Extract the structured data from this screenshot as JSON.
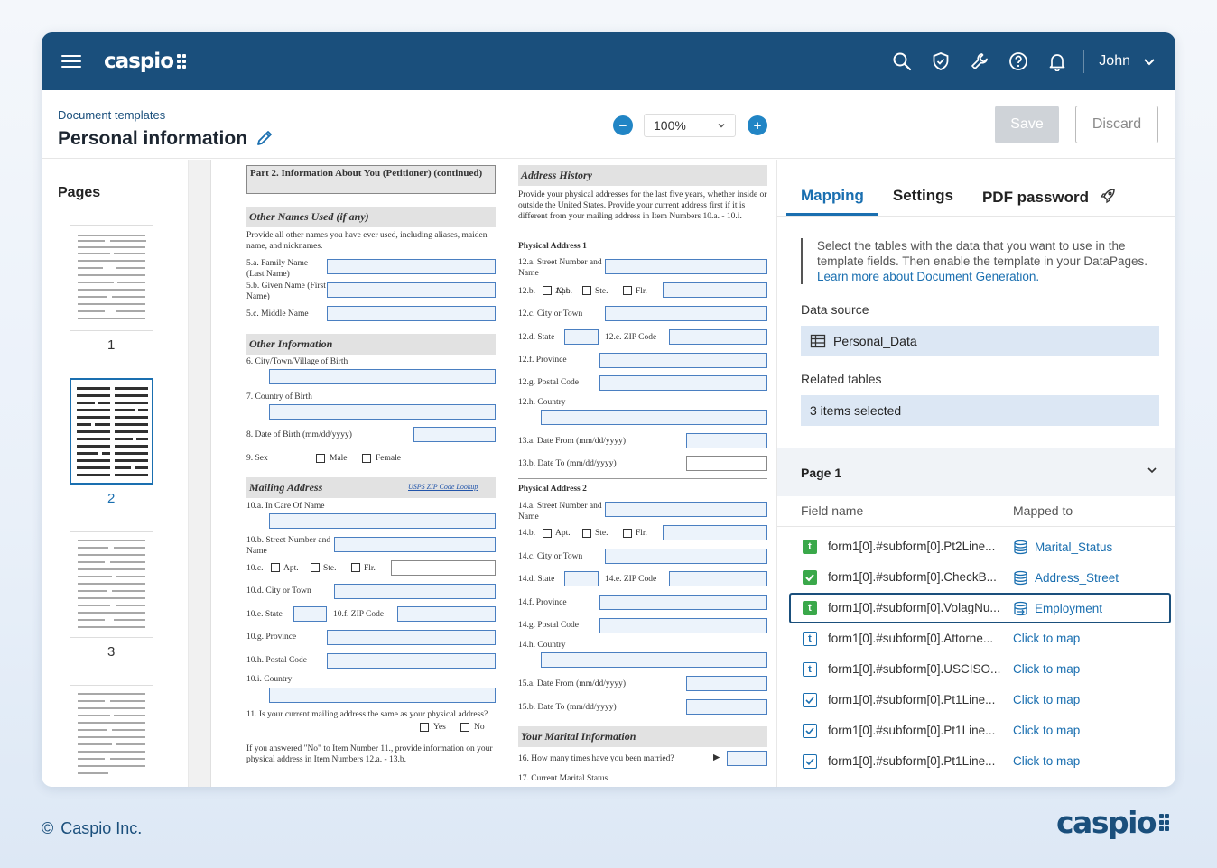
{
  "app": {
    "brand": "caspio",
    "user": "John",
    "accent": "#1a4f7c",
    "link_color": "#1a6fb0"
  },
  "header": {
    "breadcrumb": "Document templates",
    "title": "Personal information",
    "zoom": "100%",
    "save_label": "Save",
    "discard_label": "Discard"
  },
  "pages": {
    "heading": "Pages",
    "items": [
      {
        "num": "1"
      },
      {
        "num": "2",
        "selected": true
      },
      {
        "num": "3"
      }
    ]
  },
  "document": {
    "left": {
      "part_head": "Part 2.  Information About You (Petitioner) (continued)",
      "other_names_head": "Other Names Used (if any)",
      "other_names_desc": "Provide all other names you have ever used, including aliases, maiden name, and nicknames.",
      "f5a": "5.a.  Family Name (Last Name)",
      "f5b": "5.b.  Given Name (First Name)",
      "f5c": "5.c.  Middle Name",
      "other_info_head": "Other Information",
      "f6": "6.    City/Town/Village of Birth",
      "f7": "7.    Country of Birth",
      "f8": "8.    Date of Birth (mm/dd/yyyy)",
      "f9": "9.    Sex",
      "male": "Male",
      "female": "Female",
      "mailing_head": "Mailing Address",
      "usps": "USPS ZIP Code Lookup",
      "f10a": "10.a.  In Care Of Name",
      "f10b": "10.b.  Street Number and Name",
      "f10c": "10.c.",
      "apt": "Apt.",
      "ste": "Ste.",
      "flr": "Flr.",
      "f10d": "10.d.  City or Town",
      "f10e": "10.e.  State",
      "f10f": "10.f.  ZIP Code",
      "f10g": "10.g.  Province",
      "f10h": "10.h.  Postal Code",
      "f10i": "10.i.  Country",
      "f11": "11.    Is your current mailing address the same as your physical address?",
      "yes": "Yes",
      "no": "No",
      "f11note": "If you answered \"No\" to Item Number 11., provide information on your physical address in Item Numbers 12.a. - 13.b."
    },
    "right": {
      "addr_head": "Address History",
      "addr_desc": "Provide your physical addresses for the last five years, whether inside or outside the United States.  Provide your current address first if it is different from your mailing address in Item Numbers 10.a. - 10.i.",
      "phys1": "Physical Address 1",
      "f12a": "12.a.  Street Number and Name",
      "f12b": "12.b.",
      "f12c": "12.c.  City or Town",
      "f12d": "12.d.  State",
      "f12e": "12.e.  ZIP Code",
      "f12f": "12.f.  Province",
      "f12g": "12.g.  Postal Code",
      "f12h": "12.h.  Country",
      "f13a": "13.a.  Date From (mm/dd/yyyy)",
      "f13b": "13.b.  Date To (mm/dd/yyyy)",
      "phys2": "Physical Address 2",
      "f14a": "14.a.  Street Number and Name",
      "f14b": "14.b.",
      "f14c": "14.c.  City or Town",
      "f14d": "14.d.  State",
      "f14e": "14.e.  ZIP Code",
      "f14f": "14.f.  Province",
      "f14g": "14.g.  Postal Code",
      "f14h": "14.h.  Country",
      "f15a": "15.a.  Date From (mm/dd/yyyy)",
      "f15b": "15.b.  Date To (mm/dd/yyyy)",
      "marital_head": "Your Marital Information",
      "f16": "16.    How many times have you been married?",
      "f17": "17.    Current Marital Status"
    }
  },
  "panel": {
    "tabs": [
      "Mapping",
      "Settings",
      "PDF password"
    ],
    "info_text": "Select the tables with the data that you want to use in the template fields. Then enable the template in your DataPages.",
    "info_link": "Learn more about Document Generation.",
    "data_source_label": "Data source",
    "data_source_value": "Personal_Data",
    "related_label": "Related tables",
    "related_value": "3 items selected",
    "section": "Page 1",
    "col_field": "Field name",
    "col_mapped": "Mapped to",
    "rows": [
      {
        "icon": "text-field-icon",
        "filled": true,
        "field": "form1[0].#subform[0].Pt2Line...",
        "mapped": "Marital_Status"
      },
      {
        "icon": "checkbox-field-icon",
        "filled": true,
        "field": "form1[0].#subform[0].CheckB...",
        "mapped": "Address_Street"
      },
      {
        "icon": "text-field-icon",
        "filled": true,
        "field": "form1[0].#subform[0].VolagNu...",
        "mapped": "Employment",
        "highlight": true
      },
      {
        "icon": "text-field-icon",
        "filled": false,
        "field": "form1[0].#subform[0].Attorne...",
        "mapped": "Click to map"
      },
      {
        "icon": "text-field-icon",
        "filled": false,
        "field": "form1[0].#subform[0].USCISO...",
        "mapped": "Click to map"
      },
      {
        "icon": "checkbox-field-icon",
        "filled": false,
        "field": "form1[0].#subform[0].Pt1Line...",
        "mapped": "Click to map"
      },
      {
        "icon": "checkbox-field-icon",
        "filled": false,
        "field": "form1[0].#subform[0].Pt1Line...",
        "mapped": "Click to map"
      },
      {
        "icon": "checkbox-field-icon",
        "filled": false,
        "field": "form1[0].#subform[0].Pt1Line...",
        "mapped": "Click to map"
      }
    ]
  },
  "footer": {
    "copyright": "Caspio Inc.",
    "logo": "caspio"
  }
}
